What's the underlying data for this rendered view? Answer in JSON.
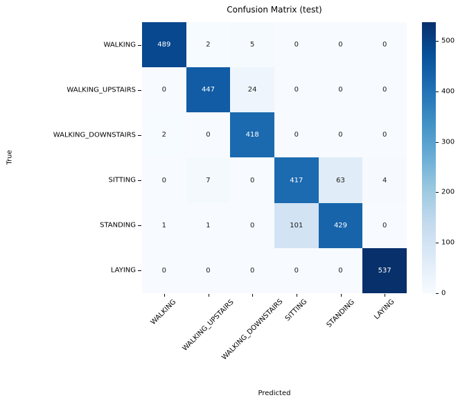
{
  "figure": {
    "title": "Confusion Matrix (test)",
    "xlabel": "Predicted",
    "ylabel": "True"
  },
  "chart_data": {
    "type": "heatmap",
    "title": "Confusion Matrix (test)",
    "xlabel": "Predicted",
    "ylabel": "True",
    "x_categories": [
      "WALKING",
      "WALKING_UPSTAIRS",
      "WALKING_DOWNSTAIRS",
      "SITTING",
      "STANDING",
      "LAYING"
    ],
    "y_categories": [
      "WALKING",
      "WALKING_UPSTAIRS",
      "WALKING_DOWNSTAIRS",
      "SITTING",
      "STANDING",
      "LAYING"
    ],
    "matrix": [
      [
        489,
        2,
        5,
        0,
        0,
        0
      ],
      [
        0,
        447,
        24,
        0,
        0,
        0
      ],
      [
        2,
        0,
        418,
        0,
        0,
        0
      ],
      [
        0,
        7,
        0,
        417,
        63,
        4
      ],
      [
        1,
        1,
        0,
        101,
        429,
        0
      ],
      [
        0,
        0,
        0,
        0,
        0,
        537
      ]
    ],
    "vmin": 0,
    "vmax": 537,
    "colormap": "Blues",
    "colorbar_ticks": [
      0,
      100,
      200,
      300,
      400,
      500
    ],
    "colorbar_position": "right",
    "annotated": true,
    "grid": false,
    "x_tick_rotation_deg": 45
  },
  "colors": {
    "background": "#ffffff",
    "cmap_stops": [
      "#f7fbff",
      "#deebf7",
      "#c6dbef",
      "#9ecae1",
      "#6baed6",
      "#4292c6",
      "#2171b5",
      "#08519c",
      "#08306b"
    ],
    "annotation_dark": "#1a1a1a",
    "annotation_light": "#ffffff",
    "tick_color": "#000000"
  }
}
